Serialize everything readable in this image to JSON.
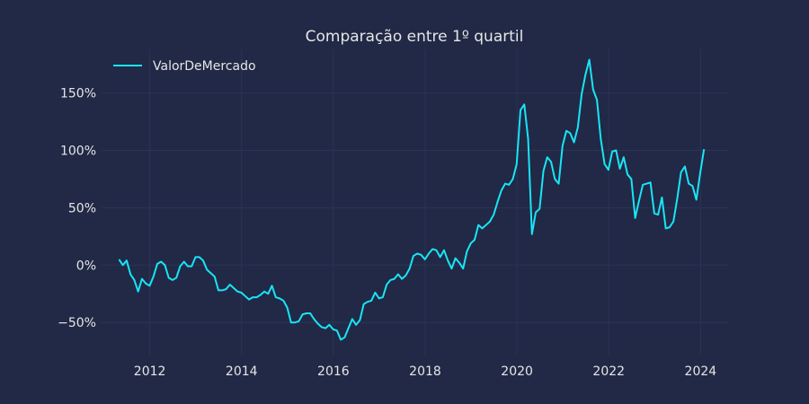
{
  "chart_data": {
    "type": "line",
    "title": "Comparação entre 1º quartil",
    "xlabel": "",
    "ylabel": "",
    "legend_position": "top-left",
    "grid": true,
    "xlim": [
      2010.95,
      2024.6
    ],
    "ylim": [
      -0.78,
      1.88
    ],
    "x_ticks": [
      2012,
      2014,
      2016,
      2018,
      2020,
      2022,
      2024
    ],
    "x_tick_labels": [
      "2012",
      "2014",
      "2016",
      "2018",
      "2020",
      "2022",
      "2024"
    ],
    "y_ticks": [
      -0.5,
      0,
      0.5,
      1.0,
      1.5
    ],
    "y_tick_labels": [
      "−50%",
      "0%",
      "50%",
      "100%",
      "150%"
    ],
    "colors": {
      "background": "#212946",
      "grid": "#2A3459",
      "line": "#18E5F5",
      "text": "#E6E6E6"
    },
    "series": [
      {
        "name": "ValorDeMercado",
        "x_start": 2011.33,
        "x_step": 0.0833,
        "values": [
          0.05,
          0.0,
          0.04,
          -0.08,
          -0.13,
          -0.23,
          -0.12,
          -0.16,
          -0.18,
          -0.1,
          0.01,
          0.03,
          0.0,
          -0.11,
          -0.13,
          -0.11,
          -0.01,
          0.03,
          -0.01,
          -0.01,
          0.07,
          0.07,
          0.04,
          -0.04,
          -0.07,
          -0.1,
          -0.22,
          -0.22,
          -0.21,
          -0.17,
          -0.2,
          -0.23,
          -0.24,
          -0.27,
          -0.3,
          -0.28,
          -0.28,
          -0.26,
          -0.23,
          -0.25,
          -0.18,
          -0.28,
          -0.29,
          -0.31,
          -0.37,
          -0.5,
          -0.5,
          -0.49,
          -0.43,
          -0.42,
          -0.42,
          -0.47,
          -0.51,
          -0.54,
          -0.55,
          -0.52,
          -0.56,
          -0.57,
          -0.65,
          -0.63,
          -0.55,
          -0.47,
          -0.52,
          -0.48,
          -0.34,
          -0.32,
          -0.31,
          -0.24,
          -0.29,
          -0.28,
          -0.17,
          -0.13,
          -0.12,
          -0.08,
          -0.12,
          -0.09,
          -0.03,
          0.08,
          0.1,
          0.09,
          0.05,
          0.1,
          0.14,
          0.13,
          0.07,
          0.13,
          0.04,
          -0.03,
          0.06,
          0.02,
          -0.03,
          0.12,
          0.19,
          0.22,
          0.35,
          0.32,
          0.35,
          0.38,
          0.44,
          0.55,
          0.65,
          0.71,
          0.7,
          0.75,
          0.88,
          1.35,
          1.4,
          1.1,
          0.27,
          0.46,
          0.49,
          0.82,
          0.94,
          0.9,
          0.75,
          0.71,
          1.04,
          1.17,
          1.15,
          1.07,
          1.2,
          1.49,
          1.66,
          1.79,
          1.53,
          1.44,
          1.1,
          0.88,
          0.83,
          0.99,
          1.0,
          0.84,
          0.94,
          0.79,
          0.75,
          0.41,
          0.56,
          0.7,
          0.71,
          0.72,
          0.45,
          0.44,
          0.59,
          0.32,
          0.33,
          0.38,
          0.58,
          0.81,
          0.86,
          0.71,
          0.69,
          0.57,
          0.8,
          1.01
        ]
      }
    ]
  }
}
